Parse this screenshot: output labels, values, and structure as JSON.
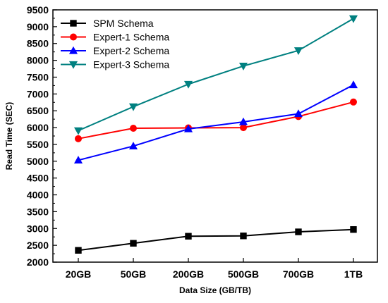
{
  "chart_data": {
    "type": "line",
    "xlabel": "Data Size (GB/TB)",
    "ylabel": "Read Time (SEC)",
    "categories": [
      "20GB",
      "50GB",
      "200GB",
      "500GB",
      "700GB",
      "1TB"
    ],
    "ylim": [
      2000,
      9500
    ],
    "yticks": [
      2000,
      2500,
      3000,
      3500,
      4000,
      4500,
      5000,
      5500,
      6000,
      6500,
      7000,
      7500,
      8000,
      8500,
      9000,
      9500
    ],
    "grid": false,
    "legend_position": "top-left",
    "series": [
      {
        "name": "SPM Schema",
        "color": "#000000",
        "marker": "square",
        "values": [
          2350,
          2560,
          2770,
          2780,
          2900,
          2970
        ]
      },
      {
        "name": "Expert-1 Schema",
        "color": "#ff0000",
        "marker": "circle",
        "values": [
          5670,
          5980,
          5990,
          6000,
          6330,
          6760
        ]
      },
      {
        "name": "Expert-2 Schema",
        "color": "#0000ff",
        "marker": "triangle-up",
        "values": [
          5030,
          5450,
          5960,
          6170,
          6410,
          7270
        ]
      },
      {
        "name": "Expert-3 Schema",
        "color": "#008080",
        "marker": "triangle-down",
        "values": [
          5910,
          6620,
          7290,
          7830,
          8290,
          9240
        ]
      }
    ]
  }
}
